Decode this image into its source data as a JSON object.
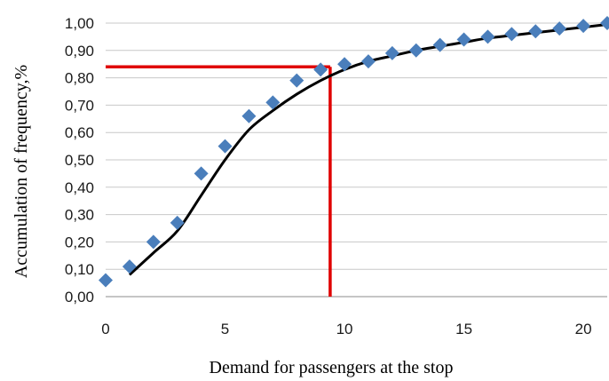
{
  "chart_data": {
    "type": "scatter",
    "title": "",
    "xlabel": "Demand for passengers at the stop",
    "ylabel": "Accumulation of frequency,%",
    "xlim": [
      0,
      21
    ],
    "ylim": [
      0,
      1.0
    ],
    "x_ticks": [
      {
        "value": 0,
        "label": "0"
      },
      {
        "value": 5,
        "label": "5"
      },
      {
        "value": 10,
        "label": "10"
      },
      {
        "value": 15,
        "label": "15"
      },
      {
        "value": 20,
        "label": "20"
      }
    ],
    "y_ticks": [
      {
        "value": 0.0,
        "label": "0,00"
      },
      {
        "value": 0.1,
        "label": "0,10"
      },
      {
        "value": 0.2,
        "label": "0,20"
      },
      {
        "value": 0.3,
        "label": "0,30"
      },
      {
        "value": 0.4,
        "label": "0,40"
      },
      {
        "value": 0.5,
        "label": "0,50"
      },
      {
        "value": 0.6,
        "label": "0,60"
      },
      {
        "value": 0.7,
        "label": "0,70"
      },
      {
        "value": 0.8,
        "label": "0,80"
      },
      {
        "value": 0.9,
        "label": "0,90"
      },
      {
        "value": 1.0,
        "label": "1,00"
      }
    ],
    "grid": {
      "horizontal": true,
      "vertical": false
    },
    "series": [
      {
        "kind": "points",
        "marker": "diamond",
        "color": "#4a7ebb",
        "x": [
          0,
          1,
          2,
          3,
          4,
          5,
          6,
          7,
          8,
          9,
          10,
          11,
          12,
          13,
          14,
          15,
          16,
          17,
          18,
          19,
          20,
          21
        ],
        "y": [
          0.06,
          0.11,
          0.2,
          0.27,
          0.45,
          0.55,
          0.66,
          0.71,
          0.79,
          0.83,
          0.85,
          0.86,
          0.89,
          0.9,
          0.92,
          0.94,
          0.95,
          0.96,
          0.97,
          0.98,
          0.99,
          1.0
        ]
      },
      {
        "kind": "curve",
        "color": "#000000",
        "x": [
          1,
          2,
          3,
          4,
          5,
          6,
          7,
          8,
          9,
          10,
          11,
          12,
          13,
          14,
          15,
          16,
          17,
          18,
          19,
          20,
          21
        ],
        "y": [
          0.08,
          0.16,
          0.24,
          0.37,
          0.5,
          0.61,
          0.68,
          0.74,
          0.79,
          0.83,
          0.86,
          0.88,
          0.9,
          0.915,
          0.93,
          0.945,
          0.955,
          0.965,
          0.975,
          0.985,
          0.995
        ]
      }
    ],
    "reference_lines": {
      "color": "#e00000",
      "x": 9.4,
      "y": 0.84
    }
  }
}
